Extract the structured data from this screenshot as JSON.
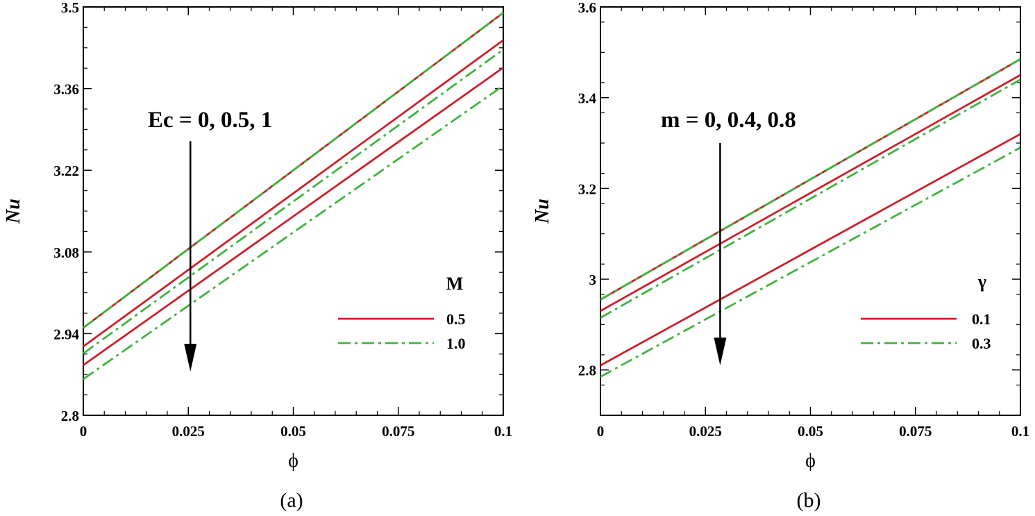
{
  "figure": {
    "panels": [
      "(a)",
      "(b)"
    ]
  },
  "chart_data": [
    {
      "type": "line",
      "panel_label": "(a)",
      "xlabel": "ϕ",
      "ylabel": "Nu",
      "xlim": [
        0,
        0.1
      ],
      "ylim": [
        2.8,
        3.5
      ],
      "xticks": [
        0,
        0.025,
        0.05,
        0.075,
        0.1
      ],
      "xtick_labels": [
        "0",
        "0.025",
        "0.05",
        "0.075",
        "0.1"
      ],
      "yticks": [
        2.8,
        2.94,
        3.08,
        3.22,
        3.36,
        3.5
      ],
      "ytick_labels": [
        "2.8",
        "2.94",
        "3.08",
        "3.22",
        "3.36",
        "3.5"
      ],
      "annotation": "Ec = 0, 0.5, 1",
      "arrow": {
        "x": 0.0255,
        "y_from": 3.27,
        "y_to": 2.875,
        "direction": "down"
      },
      "legend": {
        "title": "M",
        "placement": "lower-right",
        "entries": [
          {
            "label": "0.5",
            "style": "solid",
            "color": "#cc1f2a"
          },
          {
            "label": "1.0",
            "style": "dashdot",
            "color": "#3db53d"
          }
        ]
      },
      "series": [
        {
          "name": "M = 0.5, Ec = 0",
          "style": "solid",
          "color": "#cc1f2a",
          "x": [
            0,
            0.1
          ],
          "y": [
            2.95,
            3.49
          ]
        },
        {
          "name": "M = 1.0, Ec = 0",
          "style": "dashdot",
          "color": "#3db53d",
          "x": [
            0,
            0.1
          ],
          "y": [
            2.95,
            3.49
          ]
        },
        {
          "name": "M = 0.5, Ec = 0.5",
          "style": "solid",
          "color": "#cc1f2a",
          "x": [
            0,
            0.1
          ],
          "y": [
            2.918,
            3.443
          ]
        },
        {
          "name": "M = 1.0, Ec = 0.5",
          "style": "dashdot",
          "color": "#3db53d",
          "x": [
            0,
            0.1
          ],
          "y": [
            2.906,
            3.427
          ]
        },
        {
          "name": "M = 0.5, Ec = 1",
          "style": "solid",
          "color": "#cc1f2a",
          "x": [
            0,
            0.1
          ],
          "y": [
            2.886,
            3.396
          ]
        },
        {
          "name": "M = 1.0, Ec = 1",
          "style": "dashdot",
          "color": "#3db53d",
          "x": [
            0,
            0.1
          ],
          "y": [
            2.862,
            3.365
          ]
        }
      ]
    },
    {
      "type": "line",
      "panel_label": "(b)",
      "xlabel": "ϕ",
      "ylabel": "Nu",
      "xlim": [
        0,
        0.1
      ],
      "ylim": [
        2.7,
        3.6
      ],
      "xticks": [
        0,
        0.025,
        0.05,
        0.075,
        0.1
      ],
      "xtick_labels": [
        "0",
        "0.025",
        "0.05",
        "0.075",
        "0.1"
      ],
      "yticks": [
        2.8,
        3.0,
        3.2,
        3.4,
        3.6
      ],
      "ytick_labels": [
        "2.8",
        "3",
        "3.2",
        "3.4",
        "3.6"
      ],
      "annotation": "m = 0, 0.4, 0.8",
      "arrow": {
        "x": 0.0285,
        "y_from": 3.3,
        "y_to": 2.81,
        "direction": "down"
      },
      "legend": {
        "title": "γ",
        "placement": "lower-right",
        "entries": [
          {
            "label": "0.1",
            "style": "solid",
            "color": "#cc1f2a"
          },
          {
            "label": "0.3",
            "style": "dashdot",
            "color": "#3db53d"
          }
        ]
      },
      "series": [
        {
          "name": "γ = 0.1, m = 0",
          "style": "solid",
          "color": "#cc1f2a",
          "x": [
            0,
            0.1
          ],
          "y": [
            2.955,
            3.485
          ]
        },
        {
          "name": "γ = 0.3, m = 0",
          "style": "dashdot",
          "color": "#3db53d",
          "x": [
            0,
            0.1
          ],
          "y": [
            2.955,
            3.485
          ]
        },
        {
          "name": "γ = 0.1, m = 0.4",
          "style": "solid",
          "color": "#cc1f2a",
          "x": [
            0,
            0.1
          ],
          "y": [
            2.93,
            3.45
          ]
        },
        {
          "name": "γ = 0.3, m = 0.4",
          "style": "dashdot",
          "color": "#3db53d",
          "x": [
            0,
            0.1
          ],
          "y": [
            2.915,
            3.44
          ]
        },
        {
          "name": "γ = 0.1, m = 0.8",
          "style": "solid",
          "color": "#cc1f2a",
          "x": [
            0,
            0.1
          ],
          "y": [
            2.81,
            3.32
          ]
        },
        {
          "name": "γ = 0.3, m = 0.8",
          "style": "dashdot",
          "color": "#3db53d",
          "x": [
            0,
            0.1
          ],
          "y": [
            2.785,
            3.29
          ]
        }
      ]
    }
  ]
}
